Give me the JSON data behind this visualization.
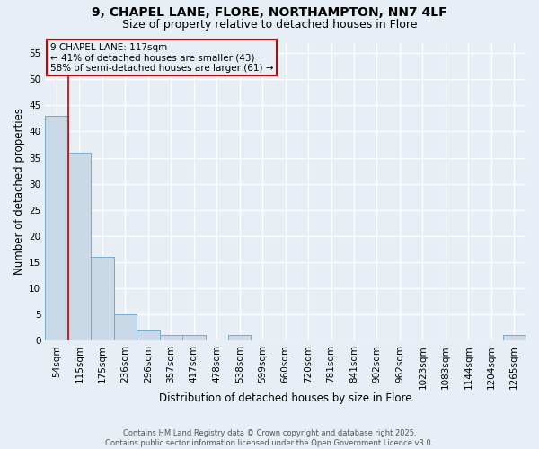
{
  "title1": "9, CHAPEL LANE, FLORE, NORTHAMPTON, NN7 4LF",
  "title2": "Size of property relative to detached houses in Flore",
  "xlabel": "Distribution of detached houses by size in Flore",
  "ylabel": "Number of detached properties",
  "categories": [
    "54sqm",
    "115sqm",
    "175sqm",
    "236sqm",
    "296sqm",
    "357sqm",
    "417sqm",
    "478sqm",
    "538sqm",
    "599sqm",
    "660sqm",
    "720sqm",
    "781sqm",
    "841sqm",
    "902sqm",
    "962sqm",
    "1023sqm",
    "1083sqm",
    "1144sqm",
    "1204sqm",
    "1265sqm"
  ],
  "values": [
    43,
    36,
    16,
    5,
    2,
    1,
    1,
    0,
    1,
    0,
    0,
    0,
    0,
    0,
    0,
    0,
    0,
    0,
    0,
    0,
    1
  ],
  "bar_color": "#c9d9e8",
  "bar_edge_color": "#7aaac8",
  "red_line_x": 0.5,
  "annotation_box_text": "9 CHAPEL LANE: 117sqm\n← 41% of detached houses are smaller (43)\n58% of semi-detached houses are larger (61) →",
  "red_line_color": "#cc0000",
  "bg_color": "#e8eef5",
  "grid_color": "#ffffff",
  "footer_text": "Contains HM Land Registry data © Crown copyright and database right 2025.\nContains public sector information licensed under the Open Government Licence v3.0.",
  "ylim": [
    0,
    57
  ],
  "yticks": [
    0,
    5,
    10,
    15,
    20,
    25,
    30,
    35,
    40,
    45,
    50,
    55
  ],
  "title_fontsize": 10,
  "subtitle_fontsize": 9,
  "label_fontsize": 8.5,
  "tick_fontsize": 7.5,
  "annotation_fontsize": 7.5
}
